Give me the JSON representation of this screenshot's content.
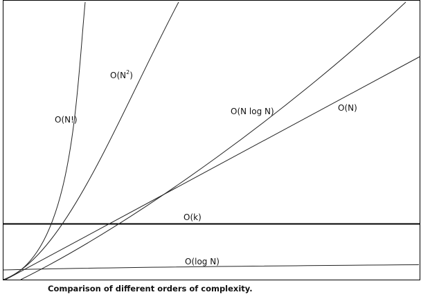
{
  "caption": "Comparison of different orders of complexity.",
  "chart_data": {
    "type": "line",
    "title": "",
    "xlabel": "",
    "ylabel": "",
    "grid": false,
    "legend": "none (curves labeled inline)",
    "axis_ticks": "none",
    "series": [
      {
        "name": "O(N!)",
        "label_base": "O(N!)",
        "label_sup": "",
        "shape": "factorial",
        "stroke_color": "#222222",
        "emphasis": false
      },
      {
        "name": "O(N2)",
        "label_base": "O(N",
        "label_sup": "2",
        "label_end": ")",
        "shape": "quadratic",
        "stroke_color": "#222222",
        "emphasis": false
      },
      {
        "name": "O(N log N)",
        "label_base": "O(N log N)",
        "label_sup": "",
        "shape": "n log n",
        "stroke_color": "#222222",
        "emphasis": false
      },
      {
        "name": "O(N)",
        "label_base": "O(N)",
        "label_sup": "",
        "shape": "linear",
        "stroke_color": "#222222",
        "emphasis": false
      },
      {
        "name": "O(k)",
        "label_base": "O(k)",
        "label_sup": "",
        "shape": "constant",
        "stroke_color": "#000000",
        "emphasis": true
      },
      {
        "name": "O(log N)",
        "label_base": "O(log N)",
        "label_sup": "",
        "shape": "logarithmic",
        "stroke_color": "#222222",
        "emphasis": false
      }
    ]
  }
}
